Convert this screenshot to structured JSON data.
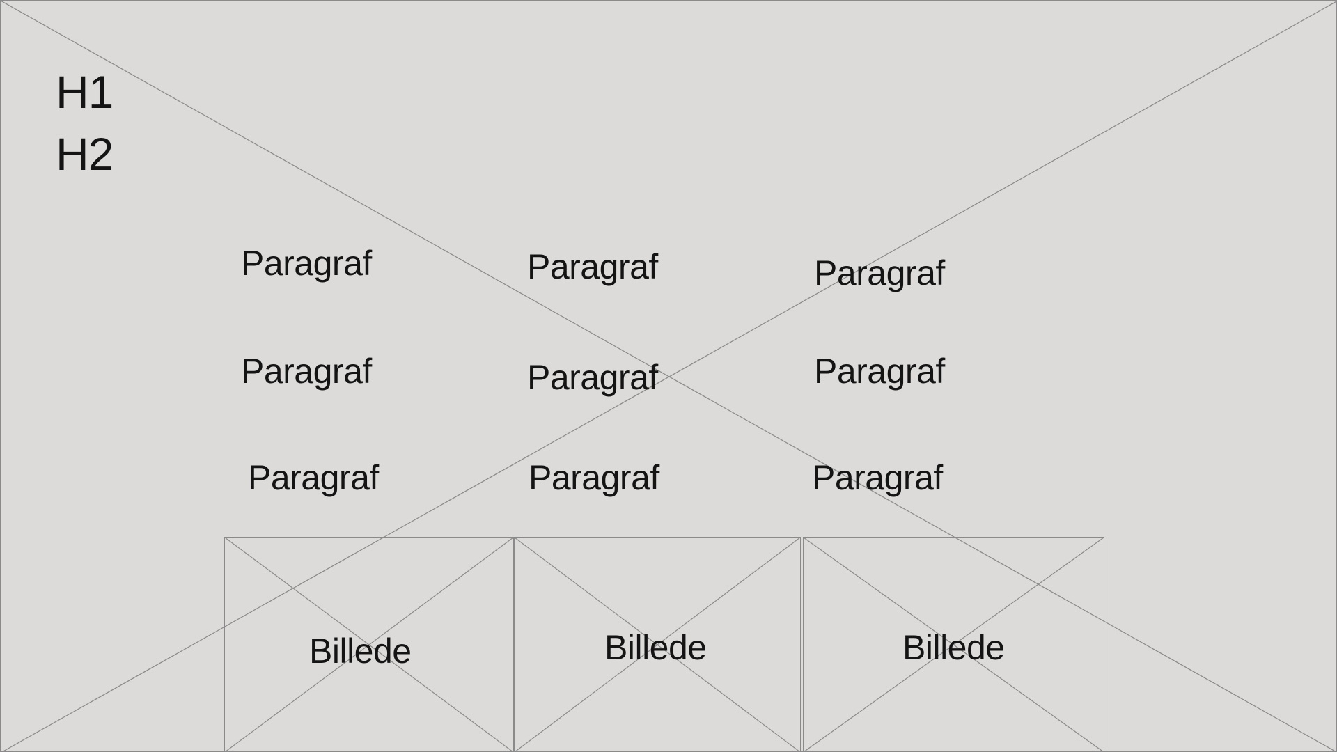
{
  "wireframe": {
    "headings": {
      "h1": "H1",
      "h2": "H2"
    },
    "paragraphs": [
      [
        "Paragraf",
        "Paragraf",
        "Paragraf"
      ],
      [
        "Paragraf",
        "Paragraf",
        "Paragraf"
      ],
      [
        "Paragraf",
        "Paragraf",
        "Paragraf"
      ]
    ],
    "images": [
      {
        "label": "Billede"
      },
      {
        "label": "Billede"
      },
      {
        "label": "Billede"
      }
    ],
    "colors": {
      "background": "#dcdbd9",
      "line": "#8a8a8a",
      "text": "#141414"
    }
  }
}
